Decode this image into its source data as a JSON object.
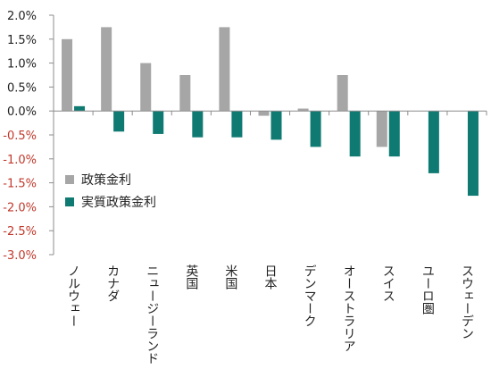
{
  "chart_data": {
    "type": "bar",
    "categories": [
      "ノルウェー",
      "カナダ",
      "ニュージーランド",
      "英国",
      "米国",
      "日本",
      "デンマーク",
      "オーストラリア",
      "スイス",
      "ユーロ圏",
      "スウェーデン"
    ],
    "series": [
      {
        "name": "政策金利",
        "color": "#a6a6a6",
        "values": [
          1.5,
          1.75,
          1.0,
          0.75,
          1.75,
          -0.1,
          0.05,
          0.75,
          -0.75,
          0.0,
          0.0
        ]
      },
      {
        "name": "実質政策金利",
        "color": "#0f7a72",
        "values": [
          0.1,
          -0.43,
          -0.48,
          -0.55,
          -0.55,
          -0.6,
          -0.75,
          -0.95,
          -0.95,
          -1.3,
          -1.77
        ]
      }
    ],
    "ylim": [
      -3.0,
      2.0
    ],
    "y_ticks": [
      "2.0%",
      "1.5%",
      "1.0%",
      "0.5%",
      "0.0%",
      "-0.5%",
      "-1.0%",
      "-1.5%",
      "-2.0%",
      "-2.5%",
      "-3.0%"
    ],
    "positive_tick_color": "#222222",
    "negative_tick_color": "#c0392b",
    "grid": false,
    "legend_position": "inside-lower-left"
  }
}
